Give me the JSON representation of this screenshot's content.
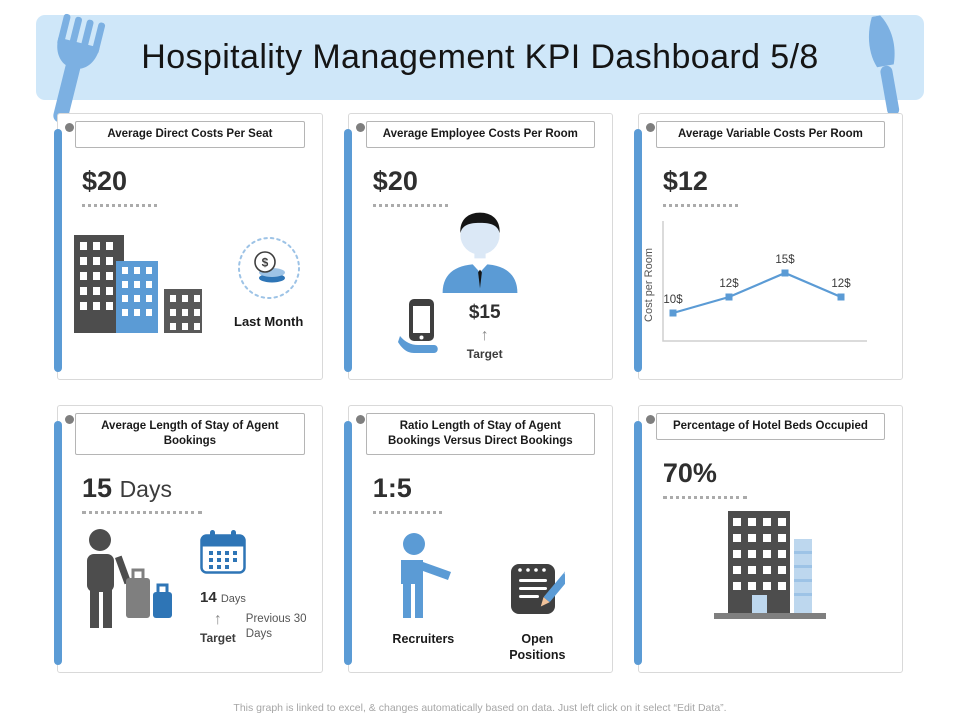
{
  "colors": {
    "accent": "#5b9bd5",
    "accent_dark": "#2e75b6",
    "title_bg": "#cfe7f9",
    "utensil_blue": "#7cb0e2",
    "dark_gray": "#4d4d4d",
    "mid_gray": "#7f7f7f",
    "border_gray": "#d9d9d9",
    "footer_text": "#a6a6a6"
  },
  "icons": {
    "up_arrow": "↑"
  },
  "title": "Hospitality Management KPI Dashboard 5/8",
  "footer_note": "This graph is linked to excel, & changes automatically based on data. Just left click on it select “Edit Data”.",
  "panels": {
    "direct_costs": {
      "header": "Average Direct Costs Per Seat",
      "value": "$20",
      "caption": "Last Month"
    },
    "employee_costs": {
      "header": "Average Employee Costs Per Room",
      "value": "$20",
      "target_value": "$15",
      "target_label": "Target"
    },
    "variable_costs": {
      "header": "Average Variable Costs Per Room",
      "value": "$12"
    },
    "stay_length": {
      "header": "Average Length of Stay of Agent Bookings",
      "value_number": "15",
      "value_unit": "Days",
      "target_number": "14",
      "target_unit": "Days",
      "target_label": "Target",
      "previous_label": "Previous 30 Days"
    },
    "booking_ratio": {
      "header": "Ratio Length of Stay of Agent Bookings Versus Direct Bookings",
      "value": "1:5",
      "recruiters_label": "Recruiters",
      "positions_label": "Open Positions"
    },
    "beds_occupied": {
      "header": "Percentage of Hotel Beds Occupied",
      "value": "70%"
    }
  },
  "chart_data": {
    "type": "line",
    "x": [
      1,
      2,
      3,
      4
    ],
    "series": [
      {
        "name": "Cost per Room",
        "values": [
          10,
          12,
          15,
          12
        ]
      }
    ],
    "point_labels": [
      "10$",
      "12$",
      "15$",
      "12$"
    ],
    "title": "Average Variable Costs Per Room",
    "xlabel": "",
    "ylabel": "Cost per Room",
    "ylim": [
      8,
      18
    ],
    "grid": false,
    "legend": false,
    "marker": "square"
  }
}
